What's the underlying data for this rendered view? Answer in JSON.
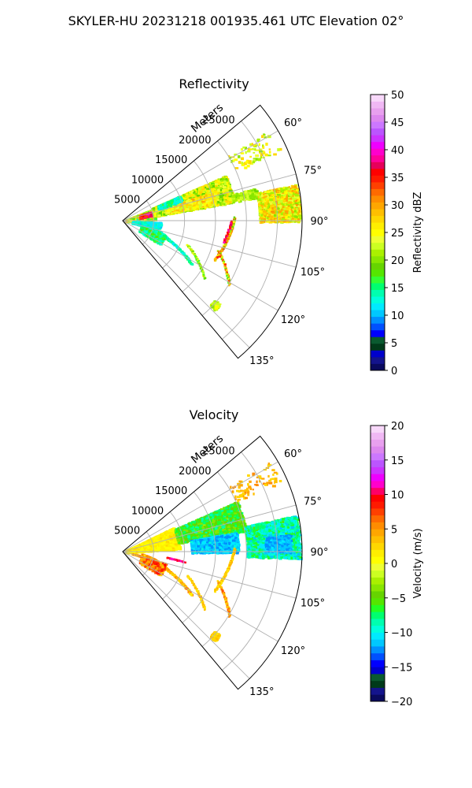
{
  "figure": {
    "suptitle": "SKYLER-HU  20231218  001935.461 UTC Elevation 02°"
  },
  "chart_data": [
    {
      "type": "heatmap",
      "projection": "polar-sector",
      "title": "Reflectivity",
      "radial_label": "Meters",
      "radial_ticks": [
        "5000",
        "10000",
        "15000",
        "20000",
        "25000"
      ],
      "radial_values": [
        5000,
        10000,
        15000,
        20000,
        25000
      ],
      "rlim": [
        0,
        29000
      ],
      "angle_ticks": [
        "60°",
        "75°",
        "90°",
        "105°",
        "120°",
        "135°"
      ],
      "angle_values": [
        60,
        75,
        90,
        105,
        120,
        135
      ],
      "theta_range_deg": [
        50,
        140
      ],
      "grid": true,
      "colorbar": {
        "label": "Reflectivity dBZ",
        "ticks": [
          "0",
          "5",
          "10",
          "15",
          "20",
          "25",
          "30",
          "35",
          "40",
          "45",
          "50"
        ],
        "vmin": 0,
        "vmax": 50,
        "colors": [
          "#0a0a5e",
          "#14148c",
          "#0000cc",
          "#003a1a",
          "#0a5a30",
          "#0000ff",
          "#0050ff",
          "#0090ff",
          "#00c8ff",
          "#00eaff",
          "#00ffdd",
          "#00ffb0",
          "#00ff70",
          "#33ff33",
          "#55e600",
          "#66d400",
          "#88e600",
          "#aaf000",
          "#ccff22",
          "#eeff33",
          "#ffff00",
          "#ffee00",
          "#ffd700",
          "#ffbf00",
          "#ffa600",
          "#ff8c00",
          "#ff6a00",
          "#ff4000",
          "#ff1a00",
          "#ff0000",
          "#e6005a",
          "#ff0099",
          "#ff00cc",
          "#ee00ff",
          "#cc33ff",
          "#bb55ff",
          "#cc77ff",
          "#dd88ee",
          "#e8a0ee",
          "#f0b8f4",
          "#f8d8fa"
        ],
        "colorbar_position": "right"
      },
      "echoes": [
        {
          "r_from": 0,
          "r_to": 5400,
          "theta_from": 63,
          "theta_to": 90,
          "level": "mixed 15-30"
        },
        {
          "r_from": 5400,
          "r_to": 21000,
          "theta_from": 64,
          "theta_to": 80,
          "level": "mostly 20-25"
        },
        {
          "r_from": 20000,
          "r_to": 29000,
          "theta_from": 75,
          "theta_to": 90,
          "level": "20-30"
        },
        {
          "r_from": 2000,
          "r_to": 13000,
          "theta_from": 93,
          "theta_to": 128,
          "level": "10-15"
        },
        {
          "r_from": 3200,
          "r_to": 4200,
          "theta_from": 73,
          "theta_to": 75,
          "level": "35-40"
        }
      ]
    },
    {
      "type": "heatmap",
      "projection": "polar-sector",
      "title": "Velocity",
      "radial_label": "Meters",
      "radial_ticks": [
        "5000",
        "10000",
        "15000",
        "20000",
        "25000"
      ],
      "radial_values": [
        5000,
        10000,
        15000,
        20000,
        25000
      ],
      "rlim": [
        0,
        29000
      ],
      "angle_ticks": [
        "60°",
        "75°",
        "90°",
        "105°",
        "120°",
        "135°"
      ],
      "angle_values": [
        60,
        75,
        90,
        105,
        120,
        135
      ],
      "theta_range_deg": [
        50,
        140
      ],
      "grid": true,
      "colorbar": {
        "label": "Velocity (m/s)",
        "ticks": [
          "−20",
          "−15",
          "−10",
          "−5",
          "0",
          "5",
          "10",
          "15",
          "20"
        ],
        "vmin": -20,
        "vmax": 20,
        "colors": [
          "#0a0a5e",
          "#14148c",
          "#003a1a",
          "#0a5a30",
          "#0000cc",
          "#0000ff",
          "#0050ff",
          "#0090ff",
          "#00c8ff",
          "#00eaff",
          "#00ffdd",
          "#00ffb0",
          "#00ff70",
          "#22ff22",
          "#55e600",
          "#66d400",
          "#88e600",
          "#aaf000",
          "#ccff22",
          "#eeff33",
          "#ffff00",
          "#ffee00",
          "#ffd700",
          "#ffbf00",
          "#ffa600",
          "#ff8c00",
          "#ff6a00",
          "#ff4000",
          "#ff1a00",
          "#ff0000",
          "#ff0066",
          "#ff00cc",
          "#ee00ff",
          "#cc33ff",
          "#bb55ff",
          "#cc77ff",
          "#dd88ee",
          "#e8a0ee",
          "#f0b8f4",
          "#f8d8fa"
        ],
        "colorbar_position": "right"
      },
      "echoes": [
        {
          "r_from": 0,
          "r_to": 9000,
          "theta_from": 62,
          "theta_to": 88,
          "level": "0 to 2"
        },
        {
          "r_from": 9000,
          "r_to": 21000,
          "theta_from": 63,
          "theta_to": 80,
          "level": "-3 to -8"
        },
        {
          "r_from": 11000,
          "r_to": 19000,
          "theta_from": 80,
          "theta_to": 92,
          "level": "-10 to -13"
        },
        {
          "r_from": 2000,
          "r_to": 13000,
          "theta_from": 100,
          "theta_to": 128,
          "level": "0 to 5"
        },
        {
          "r_from": 8000,
          "r_to": 10000,
          "theta_from": 97,
          "theta_to": 100,
          "level": "10"
        }
      ]
    }
  ]
}
